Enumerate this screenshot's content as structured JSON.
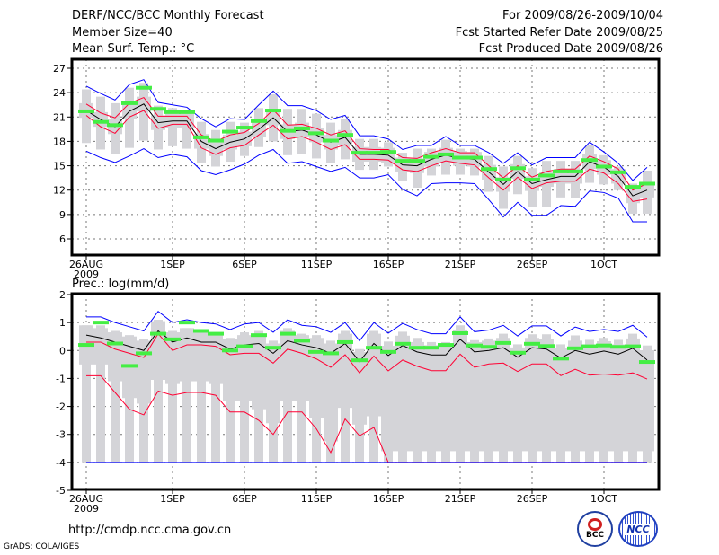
{
  "header": {
    "title": "DERF/NCC/BCC Monthly Forecast",
    "member_size": "Member Size=40",
    "variable_top": "Mean Surf. Temp.: °C",
    "period": "For 2009/08/26-2009/10/04",
    "fcst_started": "Fcst Started Refer Date 2009/08/25",
    "fcst_produced": "Fcst Produced Date 2009/08/26"
  },
  "footer": {
    "url": "http://cmdp.ncc.cma.gov.cn",
    "grads": "GrADS: COLA/IGES",
    "logo_bcc": "BCC",
    "logo_ncc": "NCC"
  },
  "colors": {
    "max_min": "#0000ff",
    "quartile": "#ff0033",
    "mean": "#000000",
    "obs": "#44ee44",
    "box": "#d4d4d8"
  },
  "chart_data": [
    {
      "type": "line",
      "title": "Mean Surf. Temp.: °C",
      "x_tick_labels": [
        "26AUG",
        "1SEP",
        "6SEP",
        "11SEP",
        "16SEP",
        "21SEP",
        "26SEP",
        "1OCT"
      ],
      "x_tick_days": [
        0,
        6,
        11,
        16,
        21,
        26,
        31,
        36
      ],
      "x_sublabel": "2009",
      "ylim": [
        4,
        28
      ],
      "y_ticks": [
        6,
        9,
        12,
        15,
        18,
        21,
        24,
        27
      ],
      "grid": true,
      "series": [
        {
          "name": "max",
          "color": "#0000ff",
          "values": [
            24.8,
            23.9,
            23.1,
            25.0,
            25.6,
            22.8,
            22.5,
            22.2,
            20.8,
            19.8,
            20.8,
            20.7,
            22.5,
            24.2,
            22.4,
            22.4,
            21.8,
            20.7,
            21.2,
            18.7,
            18.7,
            18.3,
            17.0,
            17.5,
            17.5,
            18.6,
            17.5,
            17.5,
            16.6,
            15.3,
            16.6,
            15.1,
            16.0,
            16.0,
            16.0,
            17.9,
            16.7,
            15.3,
            13.2,
            14.8
          ]
        },
        {
          "name": "upper",
          "color": "#ff0033",
          "values": [
            22.6,
            21.5,
            20.9,
            22.7,
            23.4,
            21.1,
            21.1,
            21.1,
            18.8,
            18.0,
            18.8,
            19.1,
            20.2,
            21.9,
            20.0,
            20.1,
            19.6,
            18.8,
            19.3,
            17.1,
            17.0,
            17.0,
            16.0,
            15.9,
            16.6,
            17.1,
            16.6,
            16.6,
            15.0,
            13.5,
            15.0,
            13.6,
            14.3,
            14.6,
            14.6,
            16.2,
            15.5,
            14.6,
            12.0,
            12.8
          ]
        },
        {
          "name": "mean",
          "color": "#000000",
          "values": [
            21.8,
            20.7,
            19.8,
            21.7,
            22.6,
            20.3,
            20.5,
            20.5,
            18.0,
            17.1,
            17.9,
            18.3,
            19.5,
            20.9,
            19.2,
            19.4,
            18.8,
            17.9,
            18.5,
            16.4,
            16.4,
            16.3,
            15.1,
            15.0,
            15.8,
            16.3,
            15.9,
            15.8,
            14.2,
            12.7,
            14.3,
            12.8,
            13.3,
            13.7,
            13.7,
            15.5,
            14.8,
            13.7,
            11.3,
            12.0
          ]
        },
        {
          "name": "lower",
          "color": "#ff0033",
          "values": [
            21.2,
            19.8,
            19.0,
            21.0,
            21.8,
            19.6,
            20.1,
            20.1,
            17.2,
            16.4,
            17.2,
            17.5,
            18.8,
            20.0,
            18.3,
            18.6,
            17.9,
            17.0,
            17.6,
            15.8,
            15.8,
            15.7,
            14.5,
            14.3,
            15.0,
            15.6,
            15.3,
            15.1,
            13.5,
            12.0,
            13.6,
            12.2,
            12.9,
            13.1,
            13.1,
            14.6,
            14.1,
            12.8,
            10.6,
            10.9
          ]
        },
        {
          "name": "min",
          "color": "#0000ff",
          "values": [
            16.8,
            16.0,
            15.4,
            16.2,
            17.1,
            16.0,
            16.4,
            16.1,
            14.4,
            13.9,
            14.5,
            15.2,
            16.3,
            17.0,
            15.3,
            15.5,
            14.9,
            14.3,
            14.8,
            13.5,
            13.5,
            13.9,
            12.1,
            11.3,
            12.8,
            12.9,
            12.9,
            12.8,
            10.8,
            8.7,
            10.5,
            8.9,
            8.9,
            10.1,
            10.0,
            11.9,
            11.7,
            11.0,
            8.1,
            8.1
          ]
        },
        {
          "name": "observed",
          "color": "#44ee44",
          "values": [
            21.7,
            20.4,
            20.0,
            22.7,
            24.6,
            22.0,
            21.6,
            21.6,
            18.5,
            18.1,
            19.2,
            19.7,
            20.5,
            21.8,
            19.3,
            19.6,
            19.0,
            18.1,
            18.8,
            16.6,
            16.6,
            16.7,
            15.6,
            15.6,
            16.1,
            16.4,
            16.0,
            16.0,
            14.6,
            13.3,
            14.7,
            13.3,
            13.8,
            14.3,
            14.3,
            15.7,
            14.9,
            14.2,
            12.4,
            12.8
          ]
        }
      ]
    },
    {
      "type": "line",
      "title": "Prec.: log(mm/d)",
      "x_tick_labels": [
        "26AUG",
        "1SEP",
        "6SEP",
        "11SEP",
        "16SEP",
        "21SEP",
        "26SEP",
        "1OCT"
      ],
      "x_tick_days": [
        0,
        6,
        11,
        16,
        21,
        26,
        31,
        36
      ],
      "x_sublabel": "2009",
      "ylim": [
        -5,
        2
      ],
      "y_ticks": [
        -5,
        -4,
        -3,
        -2,
        -1,
        0,
        1,
        2
      ],
      "grid": true,
      "series": [
        {
          "name": "max",
          "color": "#0000ff",
          "values": [
            1.2,
            1.2,
            1.0,
            0.85,
            0.7,
            1.4,
            1.0,
            1.1,
            1.0,
            0.95,
            0.75,
            0.95,
            1.0,
            0.65,
            1.1,
            0.9,
            0.85,
            0.65,
            1.0,
            0.35,
            1.0,
            0.62,
            0.97,
            0.75,
            0.6,
            0.6,
            1.2,
            0.67,
            0.73,
            0.9,
            0.52,
            0.88,
            0.88,
            0.52,
            0.84,
            0.68,
            0.75,
            0.68,
            0.9,
            0.48
          ]
        },
        {
          "name": "mean",
          "color": "#000000",
          "values": [
            0.55,
            0.45,
            0.3,
            0.15,
            0.0,
            0.7,
            0.3,
            0.45,
            0.3,
            0.3,
            0.05,
            0.2,
            0.25,
            -0.1,
            0.35,
            0.2,
            0.1,
            -0.1,
            0.25,
            -0.4,
            0.25,
            -0.18,
            0.18,
            -0.05,
            -0.16,
            -0.16,
            0.4,
            -0.05,
            0.0,
            0.1,
            -0.24,
            0.1,
            0.05,
            -0.27,
            0.0,
            -0.13,
            -0.02,
            -0.13,
            0.08,
            -0.34
          ]
        },
        {
          "name": "upper",
          "color": "#ff0033",
          "values": [
            0.3,
            0.3,
            0.05,
            -0.1,
            -0.25,
            0.6,
            0.0,
            0.2,
            0.2,
            0.15,
            -0.15,
            -0.1,
            -0.1,
            -0.45,
            0.05,
            -0.1,
            -0.3,
            -0.6,
            -0.15,
            -0.8,
            -0.2,
            -0.73,
            -0.34,
            -0.56,
            -0.72,
            -0.72,
            -0.13,
            -0.6,
            -0.48,
            -0.45,
            -0.75,
            -0.48,
            -0.48,
            -0.9,
            -0.67,
            -0.88,
            -0.84,
            -0.88,
            -0.8,
            -1.02
          ]
        },
        {
          "name": "lower",
          "color": "#ff0033",
          "values": [
            -0.9,
            -0.9,
            -1.5,
            -2.1,
            -2.3,
            -1.45,
            -1.6,
            -1.5,
            -1.5,
            -1.6,
            -2.2,
            -2.2,
            -2.5,
            -3.0,
            -2.2,
            -2.2,
            -2.8,
            -3.65,
            -2.45,
            -3.05,
            -2.75,
            -4,
            -4,
            -4,
            -4,
            -4,
            -4,
            -4,
            -4,
            -4,
            -4,
            -4,
            -4,
            -4,
            -4,
            -4,
            -4,
            -4,
            -4,
            -4
          ]
        },
        {
          "name": "min",
          "color": "#0000ff",
          "values": [
            -4,
            -4,
            -4,
            -4,
            -4,
            -4,
            -4,
            -4,
            -4,
            -4,
            -4,
            -4,
            -4,
            -4,
            -4,
            -4,
            -4,
            -4,
            -4,
            -4,
            -4,
            -4,
            -4,
            -4,
            -4,
            -4,
            -4,
            -4,
            -4,
            -4,
            -4,
            -4,
            -4,
            -4,
            -4,
            -4,
            -4,
            -4,
            -4,
            -4
          ]
        },
        {
          "name": "observed",
          "color": "#44ee44",
          "values": [
            0.2,
            1.0,
            0.25,
            -0.55,
            -0.1,
            0.6,
            0.4,
            1.0,
            0.7,
            0.6,
            0.0,
            0.15,
            0.55,
            0.1,
            0.6,
            0.35,
            -0.05,
            -0.1,
            0.3,
            -0.35,
            0.1,
            -0.05,
            0.24,
            0.1,
            0.1,
            0.2,
            0.62,
            0.18,
            0.13,
            0.27,
            -0.08,
            0.24,
            0.16,
            -0.29,
            0.08,
            0.15,
            0.18,
            0.13,
            0.15,
            -0.41
          ]
        }
      ]
    }
  ]
}
